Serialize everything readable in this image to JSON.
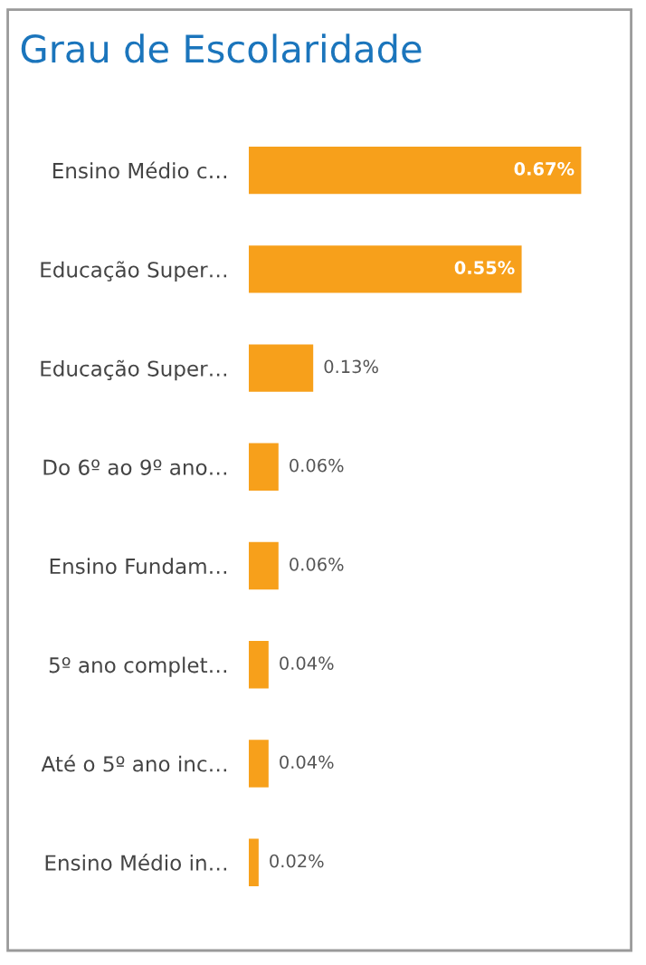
{
  "chart_data": {
    "type": "bar",
    "orientation": "horizontal",
    "title": "Grau de Escolaridade",
    "categories": [
      "Ensino Médio c…",
      "Educação Super…",
      "Educação Super…",
      "Do 6º ao 9º ano…",
      "Ensino Fundam…",
      "5º ano complet…",
      "Até o 5º ano inc…",
      "Ensino Médio in…"
    ],
    "values": [
      0.67,
      0.55,
      0.13,
      0.06,
      0.06,
      0.04,
      0.04,
      0.02
    ],
    "value_labels": [
      "0.67%",
      "0.55%",
      "0.13%",
      "0.06%",
      "0.06%",
      "0.04%",
      "0.04%",
      "0.02%"
    ],
    "color": "#f7a01b",
    "grid": false,
    "legend": false
  }
}
